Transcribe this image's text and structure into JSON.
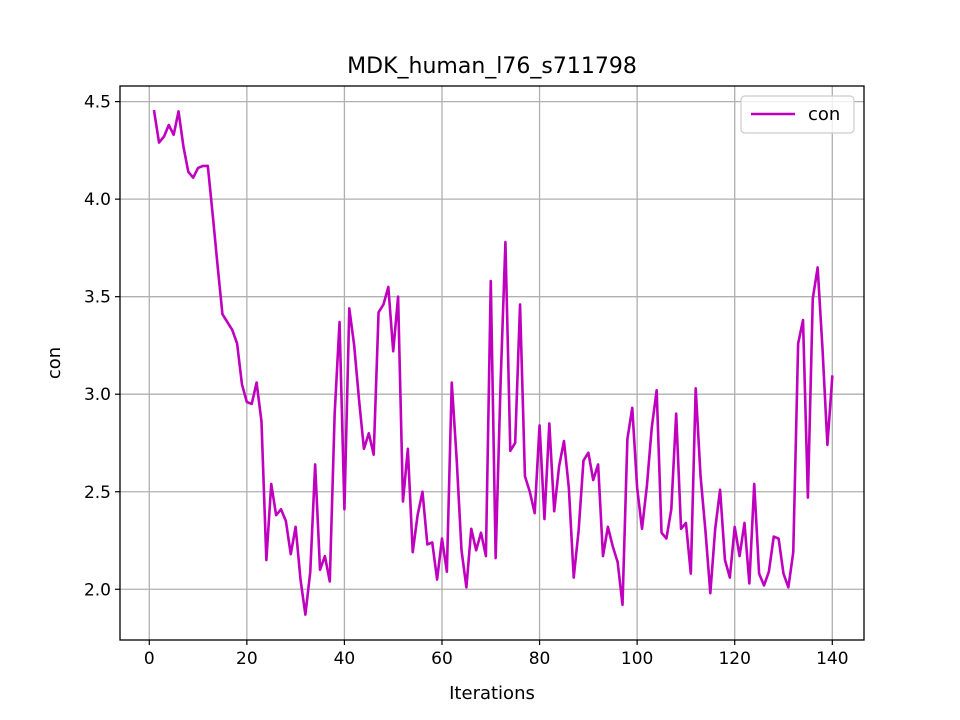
{
  "chart_data": {
    "type": "line",
    "title": "MDK_human_l76_s711798",
    "xlabel": "Iterations",
    "ylabel": "con",
    "xlim": [
      -6,
      146.5
    ],
    "ylim": [
      1.74,
      4.58
    ],
    "xticks": [
      0,
      20,
      40,
      60,
      80,
      100,
      120,
      140
    ],
    "yticks": [
      2.0,
      2.5,
      3.0,
      3.5,
      4.0,
      4.5
    ],
    "xtick_labels": [
      "0",
      "20",
      "40",
      "60",
      "80",
      "100",
      "120",
      "140"
    ],
    "ytick_labels": [
      "2.0",
      "2.5",
      "3.0",
      "3.5",
      "4.0",
      "4.5"
    ],
    "grid": true,
    "legend_position": "top-right",
    "series": [
      {
        "name": "con",
        "color": "#bf00bf",
        "x": [
          1,
          2,
          3,
          4,
          5,
          6,
          7,
          8,
          9,
          10,
          11,
          12,
          13,
          14,
          15,
          16,
          17,
          18,
          19,
          20,
          21,
          22,
          23,
          24,
          25,
          26,
          27,
          28,
          29,
          30,
          31,
          32,
          33,
          34,
          35,
          36,
          37,
          38,
          39,
          40,
          41,
          42,
          43,
          44,
          45,
          46,
          47,
          48,
          49,
          50,
          51,
          52,
          53,
          54,
          55,
          56,
          57,
          58,
          59,
          60,
          61,
          62,
          63,
          64,
          65,
          66,
          67,
          68,
          69,
          70,
          71,
          72,
          73,
          74,
          75,
          76,
          77,
          78,
          79,
          80,
          81,
          82,
          83,
          84,
          85,
          86,
          87,
          88,
          89,
          90,
          91,
          92,
          93,
          94,
          95,
          96,
          97,
          98,
          99,
          100,
          101,
          102,
          103,
          104,
          105,
          106,
          107,
          108,
          109,
          110,
          111,
          112,
          113,
          114,
          115,
          116,
          117,
          118,
          119,
          120,
          121,
          122,
          123,
          124,
          125,
          126,
          127,
          128,
          129,
          130,
          131,
          132,
          133,
          134,
          135,
          136,
          137,
          138,
          139,
          140
        ],
        "y": [
          4.45,
          4.29,
          4.32,
          4.38,
          4.33,
          4.45,
          4.27,
          4.14,
          4.11,
          4.16,
          4.17,
          4.17,
          3.92,
          3.66,
          3.41,
          3.37,
          3.33,
          3.26,
          3.05,
          2.96,
          2.95,
          3.06,
          2.86,
          2.15,
          2.54,
          2.38,
          2.41,
          2.35,
          2.18,
          2.32,
          2.05,
          1.87,
          2.09,
          2.64,
          2.1,
          2.17,
          2.04,
          2.9,
          3.37,
          2.41,
          3.44,
          3.25,
          2.97,
          2.72,
          2.8,
          2.69,
          3.42,
          3.46,
          3.55,
          3.22,
          3.5,
          2.45,
          2.72,
          2.19,
          2.38,
          2.5,
          2.23,
          2.24,
          2.05,
          2.26,
          2.09,
          3.06,
          2.67,
          2.2,
          2.01,
          2.31,
          2.2,
          2.29,
          2.17,
          3.58,
          2.16,
          3.05,
          3.78,
          2.71,
          2.75,
          3.46,
          2.58,
          2.5,
          2.39,
          2.84,
          2.36,
          2.85,
          2.4,
          2.63,
          2.76,
          2.52,
          2.06,
          2.3,
          2.66,
          2.7,
          2.56,
          2.64,
          2.17,
          2.32,
          2.22,
          2.14,
          1.92,
          2.77,
          2.93,
          2.52,
          2.31,
          2.53,
          2.83,
          3.02,
          2.29,
          2.26,
          2.41,
          2.9,
          2.31,
          2.34,
          2.08,
          3.03,
          2.58,
          2.3,
          1.98,
          2.31,
          2.51,
          2.15,
          2.06,
          2.32,
          2.17,
          2.34,
          2.03,
          2.54,
          2.08,
          2.02,
          2.09,
          2.27,
          2.26,
          2.08,
          2.01,
          2.19,
          3.26,
          3.38,
          2.47,
          3.49,
          3.65,
          3.23,
          2.74,
          3.09
        ]
      }
    ]
  }
}
